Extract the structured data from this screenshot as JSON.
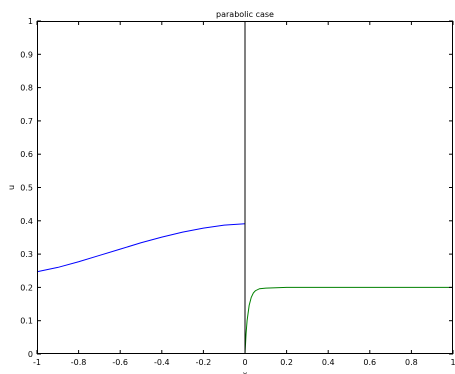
{
  "chart_data": {
    "type": "line",
    "title": "parabolic case",
    "xlabel": "x",
    "ylabel": "u",
    "xlim": [
      -1,
      1
    ],
    "ylim": [
      0,
      1
    ],
    "grid": false,
    "xticks": [
      -1,
      -0.8,
      -0.6,
      -0.4,
      -0.2,
      0,
      0.2,
      0.4,
      0.6,
      0.8,
      1
    ],
    "xtick_labels": [
      "-1",
      "-0.8",
      "-0.6",
      "-0.4",
      "-0.2",
      "0",
      "0.2",
      "0.4",
      "0.6",
      "0.8",
      "1"
    ],
    "yticks": [
      0,
      0.1,
      0.2,
      0.3,
      0.4,
      0.5,
      0.6,
      0.7,
      0.8,
      0.9,
      1
    ],
    "ytick_labels": [
      "0",
      "0.1",
      "0.2",
      "0.3",
      "0.4",
      "0.5",
      "0.6",
      "0.7",
      "0.8",
      "0.9",
      "1"
    ],
    "series": [
      {
        "color": "#0000ff",
        "x": [
          -1.0,
          -0.9,
          -0.8,
          -0.7,
          -0.6,
          -0.5,
          -0.4,
          -0.3,
          -0.2,
          -0.1,
          0.0
        ],
        "y": [
          0.247,
          0.26,
          0.277,
          0.296,
          0.315,
          0.334,
          0.351,
          0.366,
          0.378,
          0.387,
          0.391
        ]
      },
      {
        "color": "#008000",
        "x": [
          0.0,
          0.005,
          0.01,
          0.02,
          0.03,
          0.04,
          0.05,
          0.07,
          0.1,
          0.15,
          0.2,
          0.3,
          0.5,
          0.7,
          1.0
        ],
        "y": [
          0.0,
          0.06,
          0.1,
          0.146,
          0.17,
          0.183,
          0.19,
          0.196,
          0.198,
          0.199,
          0.2,
          0.2,
          0.2,
          0.2,
          0.2
        ]
      }
    ],
    "vertical_line": {
      "x": 0,
      "color": "#000000"
    }
  }
}
